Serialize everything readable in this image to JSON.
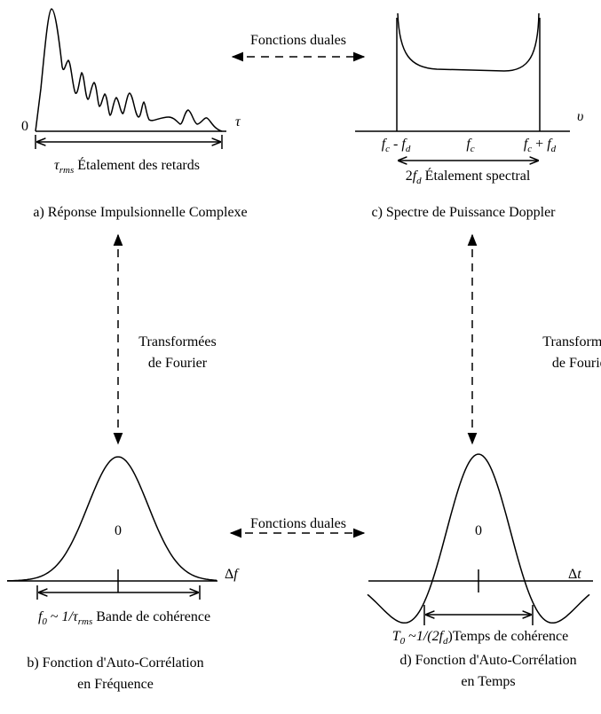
{
  "top_link": "Fonctions duales",
  "bottom_link": "Fonctions duales",
  "left_transform": [
    "Transformées",
    "de Fourier"
  ],
  "right_transform": [
    "Transformées",
    "de Fourier"
  ],
  "panel_a": {
    "origin": "0",
    "axis": "τ",
    "spread": [
      "τ",
      "rms",
      " Étalement des retards"
    ],
    "caption": "a) Réponse Impulsionnelle Complexe"
  },
  "panel_c": {
    "axis": "υ",
    "ticks": [
      [
        "f",
        "c",
        " - ",
        "f",
        "d"
      ],
      [
        "f",
        "c"
      ],
      [
        "f",
        "c",
        " + ",
        "f",
        "d"
      ]
    ],
    "spread": [
      "2",
      "f",
      "d",
      " Étalement spectral"
    ],
    "caption": "c) Spectre de Puissance Doppler"
  },
  "panel_b": {
    "origin": "0",
    "axis": [
      "Δ",
      "f"
    ],
    "spread": [
      "f",
      "0",
      " ~ ",
      "1/τ",
      "rms",
      " Bande de cohérence"
    ],
    "caption": [
      "b) Fonction d'Auto-Corrélation",
      "en Fréquence"
    ]
  },
  "panel_d": {
    "origin": "0",
    "axis": [
      "Δ",
      "t"
    ],
    "spread": [
      "T",
      "0",
      " ~",
      "1/(2",
      "f",
      "d",
      ")Temps de cohérence"
    ],
    "caption": [
      "d) Fonction d'Auto-Corrélation",
      "en Temps"
    ]
  }
}
